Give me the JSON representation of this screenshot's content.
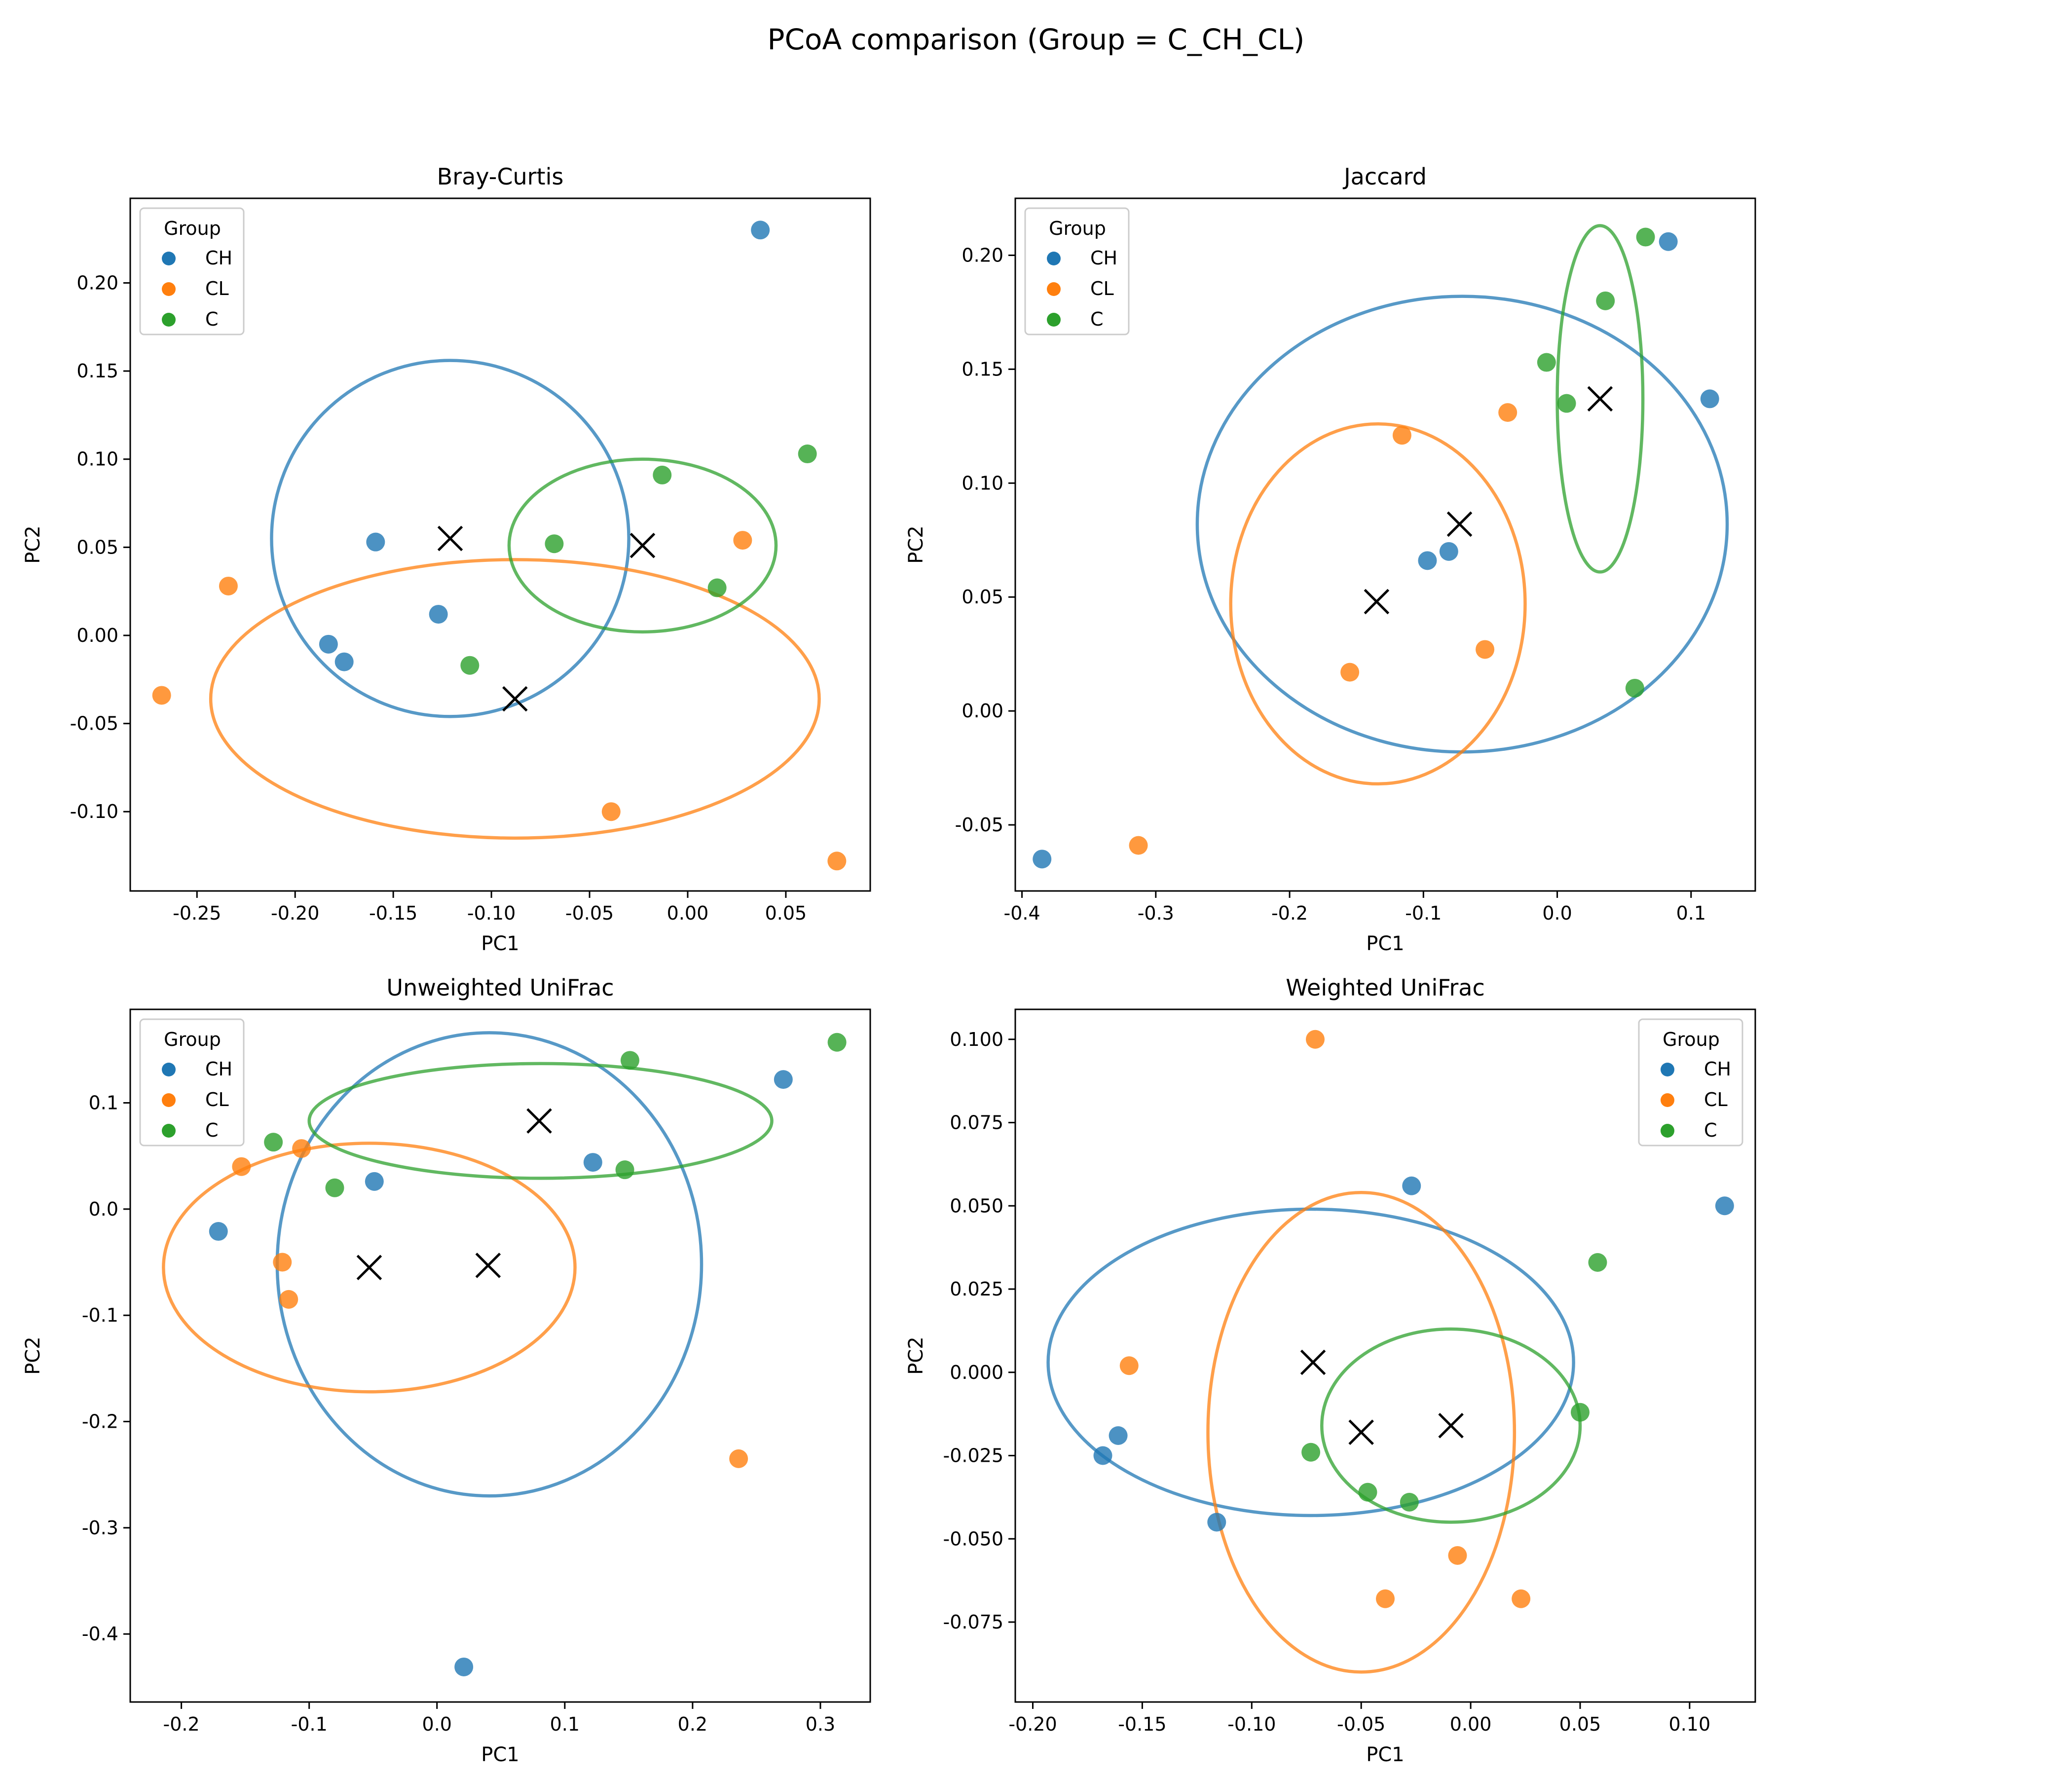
{
  "figure": {
    "suptitle": "PCoA comparison (Group = C_CH_CL)"
  },
  "group_colors": {
    "CH": "#1f77b4",
    "CL": "#ff7f0e",
    "C": "#2ca02c"
  },
  "centroid_marker": "x-cross-black",
  "chart_data": [
    {
      "type": "scatter",
      "title": "Bray-Curtis",
      "xlabel": "PC1",
      "ylabel": "PC2",
      "xlim": [
        -0.284,
        0.093
      ],
      "ylim": [
        -0.145,
        0.248
      ],
      "xticks": [
        "-0.25",
        "-0.20",
        "-0.15",
        "-0.10",
        "-0.05",
        "0.00",
        "0.05"
      ],
      "xtick_values": [
        -0.25,
        -0.2,
        -0.15,
        -0.1,
        -0.05,
        0.0,
        0.05
      ],
      "yticks": [
        "-0.10",
        "-0.05",
        "0.00",
        "0.05",
        "0.10",
        "0.15",
        "0.20"
      ],
      "ytick_values": [
        -0.1,
        -0.05,
        0.0,
        0.05,
        0.1,
        0.15,
        0.2
      ],
      "legend": {
        "title": "Group",
        "position": "upper-left",
        "entries": [
          "CH",
          "CL",
          "C"
        ]
      },
      "series": [
        {
          "name": "CH",
          "points": [
            [
              0.037,
              0.23
            ],
            [
              -0.159,
              0.053
            ],
            [
              -0.127,
              0.012
            ],
            [
              -0.183,
              -0.005
            ],
            [
              -0.175,
              -0.015
            ]
          ]
        },
        {
          "name": "CL",
          "points": [
            [
              -0.234,
              0.028
            ],
            [
              -0.268,
              -0.034
            ],
            [
              0.028,
              0.054
            ],
            [
              -0.039,
              -0.1
            ],
            [
              0.076,
              -0.128
            ]
          ]
        },
        {
          "name": "C",
          "points": [
            [
              0.061,
              0.103
            ],
            [
              -0.013,
              0.091
            ],
            [
              -0.068,
              0.052
            ],
            [
              0.015,
              0.027
            ],
            [
              -0.111,
              -0.017
            ]
          ]
        }
      ],
      "centroids": [
        {
          "name": "CH",
          "x": -0.121,
          "y": 0.055
        },
        {
          "name": "CL",
          "x": -0.088,
          "y": -0.036
        },
        {
          "name": "C",
          "x": -0.023,
          "y": 0.051
        }
      ],
      "ellipses": [
        {
          "name": "CH",
          "cx": -0.121,
          "cy": 0.055,
          "rx": 0.091,
          "ry": 0.101
        },
        {
          "name": "CL",
          "cx": -0.088,
          "cy": -0.036,
          "rx": 0.155,
          "ry": 0.079
        },
        {
          "name": "C",
          "cx": -0.023,
          "cy": 0.051,
          "rx": 0.068,
          "ry": 0.049
        }
      ]
    },
    {
      "type": "scatter",
      "title": "Jaccard",
      "xlabel": "PC1",
      "ylabel": "PC2",
      "xlim": [
        -0.405,
        0.148
      ],
      "ylim": [
        -0.079,
        0.225
      ],
      "xticks": [
        "-0.4",
        "-0.3",
        "-0.2",
        "-0.1",
        "0.0",
        "0.1"
      ],
      "xtick_values": [
        -0.4,
        -0.3,
        -0.2,
        -0.1,
        0.0,
        0.1
      ],
      "yticks": [
        "-0.05",
        "0.00",
        "0.05",
        "0.10",
        "0.15",
        "0.20"
      ],
      "ytick_values": [
        -0.05,
        0.0,
        0.05,
        0.1,
        0.15,
        0.2
      ],
      "legend": {
        "title": "Group",
        "position": "upper-left",
        "entries": [
          "CH",
          "CL",
          "C"
        ]
      },
      "series": [
        {
          "name": "CH",
          "points": [
            [
              0.083,
              0.206
            ],
            [
              0.114,
              0.137
            ],
            [
              -0.097,
              0.066
            ],
            [
              -0.081,
              0.07
            ],
            [
              -0.385,
              -0.065
            ]
          ]
        },
        {
          "name": "CL",
          "points": [
            [
              -0.037,
              0.131
            ],
            [
              -0.116,
              0.121
            ],
            [
              -0.054,
              0.027
            ],
            [
              -0.155,
              0.017
            ],
            [
              -0.313,
              -0.059
            ]
          ]
        },
        {
          "name": "C",
          "points": [
            [
              0.066,
              0.208
            ],
            [
              0.036,
              0.18
            ],
            [
              -0.008,
              0.153
            ],
            [
              0.007,
              0.135
            ],
            [
              0.058,
              0.01
            ]
          ]
        }
      ],
      "centroids": [
        {
          "name": "CH",
          "x": -0.073,
          "y": 0.082
        },
        {
          "name": "CL",
          "x": -0.135,
          "y": 0.048
        },
        {
          "name": "C",
          "x": 0.032,
          "y": 0.137
        }
      ],
      "ellipses": [
        {
          "name": "CH",
          "cx": -0.071,
          "cy": 0.082,
          "rx": 0.198,
          "ry": 0.1
        },
        {
          "name": "CL",
          "cx": -0.134,
          "cy": 0.047,
          "rx": 0.11,
          "ry": 0.079
        },
        {
          "name": "C",
          "cx": 0.032,
          "cy": 0.137,
          "rx": 0.032,
          "ry": 0.076
        }
      ]
    },
    {
      "type": "scatter",
      "title": "Unweighted UniFrac",
      "xlabel": "PC1",
      "ylabel": "PC2",
      "xlim": [
        -0.24,
        0.339
      ],
      "ylim": [
        -0.464,
        0.188
      ],
      "xticks": [
        "-0.2",
        "-0.1",
        "0.0",
        "0.1",
        "0.2",
        "0.3"
      ],
      "xtick_values": [
        -0.2,
        -0.1,
        0.0,
        0.1,
        0.2,
        0.3
      ],
      "yticks": [
        "-0.4",
        "-0.3",
        "-0.2",
        "-0.1",
        "0.0",
        "0.1"
      ],
      "ytick_values": [
        -0.4,
        -0.3,
        -0.2,
        -0.1,
        0.0,
        0.1
      ],
      "legend": {
        "title": "Group",
        "position": "upper-left",
        "entries": [
          "CH",
          "CL",
          "C"
        ]
      },
      "series": [
        {
          "name": "CH",
          "points": [
            [
              0.271,
              0.122
            ],
            [
              0.122,
              0.044
            ],
            [
              -0.049,
              0.026
            ],
            [
              -0.171,
              -0.021
            ],
            [
              0.021,
              -0.431
            ]
          ]
        },
        {
          "name": "CL",
          "points": [
            [
              -0.153,
              0.04
            ],
            [
              -0.106,
              0.057
            ],
            [
              -0.121,
              -0.05
            ],
            [
              -0.116,
              -0.085
            ],
            [
              0.236,
              -0.235
            ]
          ]
        },
        {
          "name": "C",
          "points": [
            [
              0.313,
              0.157
            ],
            [
              0.151,
              0.14
            ],
            [
              -0.128,
              0.063
            ],
            [
              -0.08,
              0.02
            ],
            [
              0.147,
              0.037
            ]
          ]
        }
      ],
      "centroids": [
        {
          "name": "CH",
          "x": 0.04,
          "y": -0.053
        },
        {
          "name": "CL",
          "x": -0.053,
          "y": -0.055
        },
        {
          "name": "C",
          "x": 0.08,
          "y": 0.083
        }
      ],
      "ellipses": [
        {
          "name": "CH",
          "cx": 0.041,
          "cy": -0.052,
          "rx": 0.166,
          "ry": 0.218
        },
        {
          "name": "CL",
          "cx": -0.053,
          "cy": -0.055,
          "rx": 0.161,
          "ry": 0.117
        },
        {
          "name": "C",
          "cx": 0.081,
          "cy": 0.083,
          "rx": 0.181,
          "ry": 0.054
        }
      ]
    },
    {
      "type": "scatter",
      "title": "Weighted UniFrac",
      "xlabel": "PC1",
      "ylabel": "PC2",
      "xlim": [
        -0.208,
        0.13
      ],
      "ylim": [
        -0.099,
        0.109
      ],
      "xticks": [
        "-0.20",
        "-0.15",
        "-0.10",
        "-0.05",
        "0.00",
        "0.05",
        "0.10"
      ],
      "xtick_values": [
        -0.2,
        -0.15,
        -0.1,
        -0.05,
        0.0,
        0.05,
        0.1
      ],
      "yticks": [
        "-0.075",
        "-0.050",
        "-0.025",
        "0.000",
        "0.025",
        "0.050",
        "0.075",
        "0.100"
      ],
      "ytick_values": [
        -0.075,
        -0.05,
        -0.025,
        0.0,
        0.025,
        0.05,
        0.075,
        0.1
      ],
      "legend": {
        "title": "Group",
        "position": "upper-right",
        "entries": [
          "CH",
          "CL",
          "C"
        ]
      },
      "series": [
        {
          "name": "CH",
          "points": [
            [
              -0.027,
              0.056
            ],
            [
              0.116,
              0.05
            ],
            [
              -0.161,
              -0.019
            ],
            [
              -0.168,
              -0.025
            ],
            [
              -0.116,
              -0.045
            ]
          ]
        },
        {
          "name": "CL",
          "points": [
            [
              -0.071,
              0.1
            ],
            [
              -0.156,
              0.002
            ],
            [
              -0.006,
              -0.055
            ],
            [
              -0.039,
              -0.068
            ],
            [
              0.023,
              -0.068
            ]
          ]
        },
        {
          "name": "C",
          "points": [
            [
              0.058,
              0.033
            ],
            [
              0.05,
              -0.012
            ],
            [
              -0.073,
              -0.024
            ],
            [
              -0.047,
              -0.036
            ],
            [
              -0.028,
              -0.039
            ]
          ]
        }
      ],
      "centroids": [
        {
          "name": "CH",
          "x": -0.072,
          "y": 0.003
        },
        {
          "name": "CL",
          "x": -0.05,
          "y": -0.018
        },
        {
          "name": "C",
          "x": -0.009,
          "y": -0.016
        }
      ],
      "ellipses": [
        {
          "name": "CH",
          "cx": -0.073,
          "cy": 0.003,
          "rx": 0.12,
          "ry": 0.046
        },
        {
          "name": "CL",
          "cx": -0.05,
          "cy": -0.018,
          "rx": 0.07,
          "ry": 0.072
        },
        {
          "name": "C",
          "cx": -0.009,
          "cy": -0.016,
          "rx": 0.059,
          "ry": 0.029
        }
      ]
    }
  ]
}
